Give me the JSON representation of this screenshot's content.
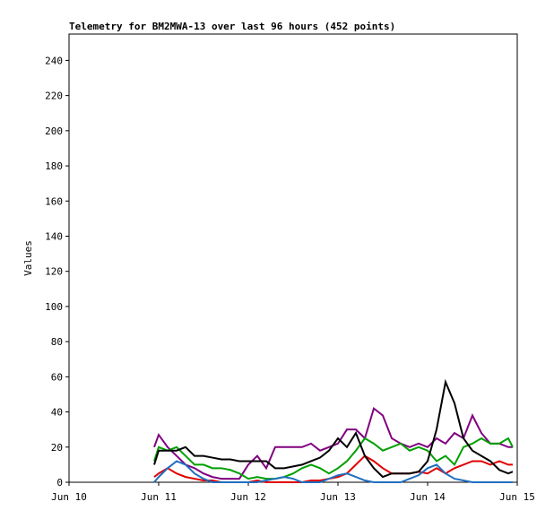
{
  "chart_data": {
    "type": "line",
    "title": "Telemetry for BM2MWA-13 over last 96 hours (452 points)",
    "y_label": "Values",
    "x": [
      10.95,
      11.0,
      11.1,
      11.2,
      11.3,
      11.4,
      11.5,
      11.6,
      11.7,
      11.8,
      11.9,
      12.0,
      12.1,
      12.2,
      12.3,
      12.4,
      12.5,
      12.6,
      12.7,
      12.8,
      12.9,
      13.0,
      13.1,
      13.2,
      13.3,
      13.4,
      13.5,
      13.6,
      13.7,
      13.8,
      13.9,
      14.0,
      14.1,
      14.2,
      14.3,
      14.4,
      14.5,
      14.6,
      14.7,
      14.8,
      14.9,
      14.95
    ],
    "series": [
      {
        "color": "#800080",
        "values": [
          20,
          27,
          20,
          15,
          10,
          8,
          5,
          3,
          2,
          2,
          2,
          10,
          15,
          8,
          20,
          20,
          20,
          20,
          22,
          18,
          20,
          22,
          30,
          30,
          25,
          42,
          38,
          25,
          22,
          20,
          22,
          20,
          25,
          22,
          28,
          25,
          38,
          28,
          22,
          22,
          20,
          20
        ]
      },
      {
        "color": "#00a000",
        "values": [
          12,
          20,
          18,
          20,
          15,
          10,
          10,
          8,
          8,
          7,
          5,
          2,
          3,
          2,
          2,
          3,
          5,
          8,
          10,
          8,
          5,
          8,
          12,
          18,
          25,
          22,
          18,
          20,
          22,
          18,
          20,
          18,
          12,
          15,
          10,
          20,
          22,
          25,
          22,
          22,
          25,
          20
        ]
      },
      {
        "color": "#e00000",
        "values": [
          3,
          5,
          8,
          5,
          3,
          2,
          1,
          1,
          0,
          0,
          0,
          0,
          1,
          0,
          0,
          0,
          0,
          0,
          1,
          1,
          2,
          3,
          5,
          10,
          15,
          12,
          8,
          5,
          5,
          5,
          6,
          5,
          8,
          5,
          8,
          10,
          12,
          12,
          10,
          12,
          10,
          10
        ]
      },
      {
        "color": "#1f6fc0",
        "values": [
          0,
          3,
          8,
          12,
          10,
          5,
          2,
          0,
          0,
          0,
          0,
          0,
          0,
          1,
          2,
          3,
          2,
          0,
          0,
          0,
          2,
          4,
          5,
          3,
          1,
          0,
          0,
          0,
          0,
          2,
          4,
          8,
          10,
          5,
          2,
          1,
          0,
          0,
          0,
          0,
          0,
          0
        ]
      },
      {
        "color": "#000000",
        "values": [
          10,
          18,
          18,
          18,
          20,
          15,
          15,
          14,
          13,
          13,
          12,
          12,
          12,
          12,
          8,
          8,
          9,
          10,
          12,
          14,
          18,
          25,
          20,
          28,
          15,
          8,
          3,
          5,
          5,
          5,
          6,
          12,
          30,
          57,
          45,
          25,
          18,
          15,
          12,
          7,
          5,
          6
        ]
      }
    ],
    "xlim": [
      10,
      15
    ],
    "xticks": [
      {
        "value": 10,
        "label": "Jun 10"
      },
      {
        "value": 11,
        "label": "Jun 11"
      },
      {
        "value": 12,
        "label": "Jun 12"
      },
      {
        "value": 13,
        "label": "Jun 13"
      },
      {
        "value": 14,
        "label": "Jun 14"
      },
      {
        "value": 15,
        "label": "Jun 15"
      }
    ],
    "ylim": [
      0,
      255
    ],
    "yticks": [
      0,
      20,
      40,
      60,
      80,
      100,
      120,
      140,
      160,
      180,
      200,
      220,
      240
    ]
  }
}
